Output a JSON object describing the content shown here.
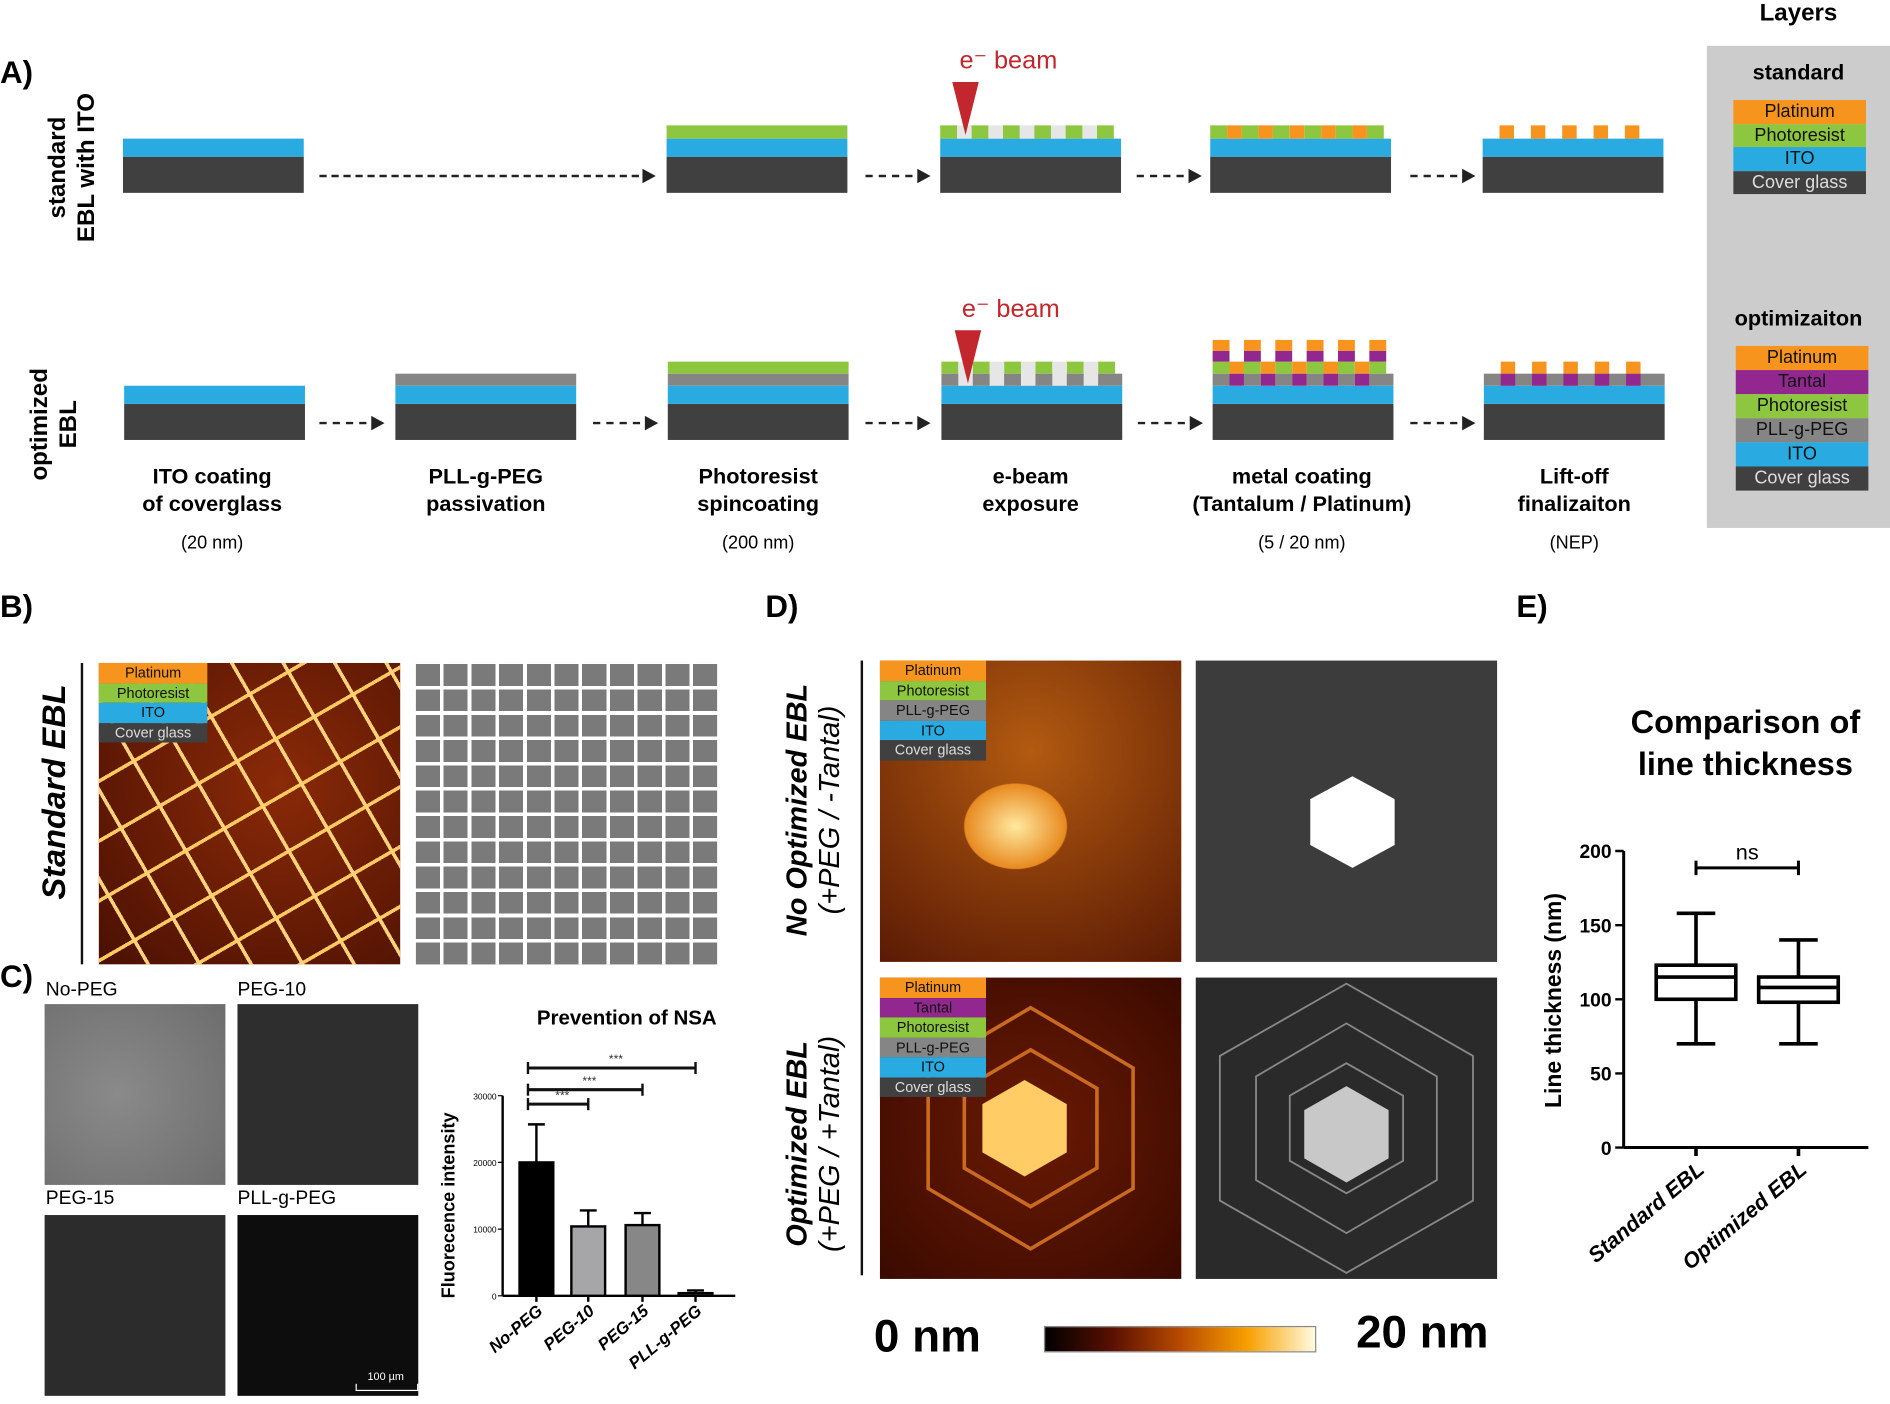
{
  "panelA": {
    "label": "A)",
    "rows": [
      {
        "label_line1": "standard",
        "label_line2": "EBL with ITO"
      },
      {
        "label_line1": "optimized",
        "label_line2": "EBL"
      }
    ],
    "ebeam": "e⁻ beam",
    "steps": [
      {
        "title1": "ITO coating",
        "title2": "of coverglass",
        "detail": "(20 nm)"
      },
      {
        "title1": "PLL-g-PEG",
        "title2": "passivation",
        "detail": ""
      },
      {
        "title1": "Photoresist",
        "title2": "spincoating",
        "detail": "(200 nm)"
      },
      {
        "title1": "e-beam",
        "title2": "exposure",
        "detail": ""
      },
      {
        "title1": "metal coating",
        "title2": "(Tantalum / Platinum)",
        "detail": "(5 / 20 nm)"
      },
      {
        "title1": "Lift-off",
        "title2": "finalizaiton",
        "detail": "(NEP)"
      }
    ],
    "layers": {
      "title": "Layers",
      "standard_title": "standard",
      "standard": [
        "Platinum",
        "Photoresist",
        "ITO",
        "Cover glass"
      ],
      "optimization_title": "optimizaiton",
      "optimization": [
        "Platinum",
        "Tantal",
        "Photoresist",
        "PLL-g-PEG",
        "ITO",
        "Cover glass"
      ]
    },
    "colors": {
      "platinum": "#f7941d",
      "tantal": "#92278f",
      "photoresist": "#8dc63f",
      "peg": "#858585",
      "ito": "#29abe2",
      "glass": "#404040",
      "ebeam": "#c1272d",
      "legend_bg": "#cccccc"
    }
  },
  "panelB": {
    "label": "B)",
    "row_label": "Standard EBL",
    "legend": [
      "Platinum",
      "Photoresist",
      "ITO",
      "Cover glass"
    ]
  },
  "panelC": {
    "label": "C)",
    "images": [
      "No-PEG",
      "PEG-10",
      "PEG-15",
      "PLL-g-PEG"
    ],
    "scalebar": "100 µm"
  },
  "panelD": {
    "label": "D)",
    "row1_label1": "No Optimized EBL",
    "row1_label2": "(+PEG / -Tantal)",
    "row2_label1": "Optimized EBL",
    "row2_label2": "(+PEG / +Tantal)",
    "legend1": [
      "Platinum",
      "Photoresist",
      "PLL-g-PEG",
      "ITO",
      "Cover glass"
    ],
    "legend2": [
      "Platinum",
      "Tantal",
      "Photoresist",
      "PLL-g-PEG",
      "ITO",
      "Cover glass"
    ],
    "colorbar_min": "0 nm",
    "colorbar_max": "20 nm"
  },
  "panelE": {
    "label": "E)"
  },
  "chart_data": [
    {
      "type": "bar",
      "title": "Prevention of NSA",
      "ylabel": "Fluorecence intensity",
      "xlabel": "",
      "categories": [
        "No-PEG",
        "PEG-10",
        "PEG-15",
        "PLL-g-PEG"
      ],
      "values": [
        20000,
        10400,
        10600,
        400
      ],
      "error_upper": [
        25700,
        12800,
        12400,
        800
      ],
      "colors": [
        "#000000",
        "#a6a6a8",
        "#878787",
        "#555555"
      ],
      "ylim": [
        0,
        30000
      ],
      "yticks": [
        "0",
        "10000",
        "20000",
        "30000"
      ],
      "significance": [
        {
          "from": "No-PEG",
          "to": "PEG-10",
          "label": "***"
        },
        {
          "from": "No-PEG",
          "to": "PEG-15",
          "label": "***"
        },
        {
          "from": "No-PEG",
          "to": "PLL-g-PEG",
          "label": "***"
        }
      ]
    },
    {
      "type": "box",
      "title1": "Comparison of",
      "title2": "line thickness",
      "ylabel": "Line thickness (nm)",
      "xlabel": "",
      "categories": [
        "Standard EBL",
        "Optimized EBL"
      ],
      "boxes": [
        {
          "min": 70,
          "q1": 100,
          "median": 115,
          "q3": 123,
          "max": 158
        },
        {
          "min": 70,
          "q1": 98,
          "median": 108,
          "q3": 115,
          "max": 140
        }
      ],
      "ylim": [
        0,
        200
      ],
      "yticks": [
        "0",
        "50",
        "100",
        "150",
        "200"
      ],
      "significance": [
        {
          "from": "Standard EBL",
          "to": "Optimized EBL",
          "label": "ns"
        }
      ]
    }
  ]
}
